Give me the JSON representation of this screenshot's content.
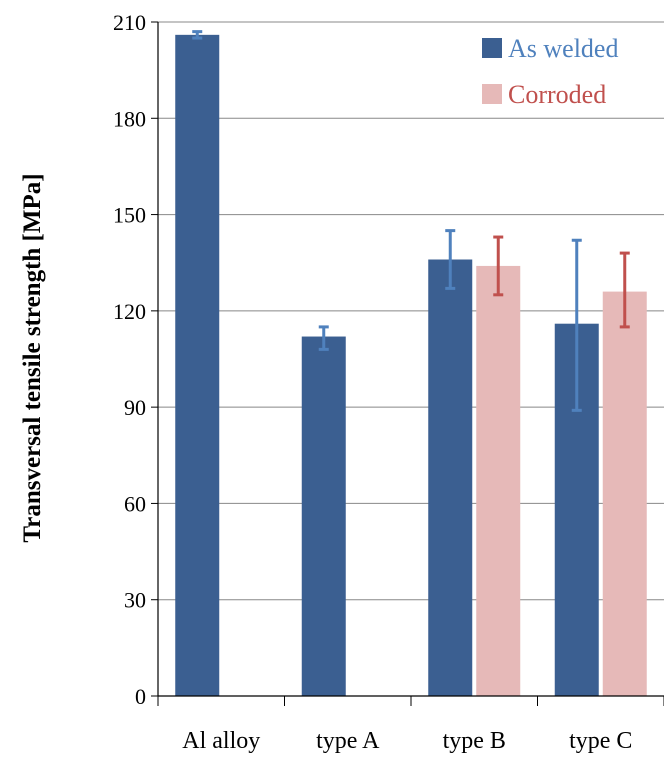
{
  "colors": {
    "as_welded": "#3b5f91",
    "as_welded_error": "#4f81bd",
    "corroded": "#e6b9b8",
    "corroded_error": "#c0504d",
    "as_welded_legend_text": "#4f81bd",
    "corroded_legend_text": "#c0504d",
    "grid": "#888888",
    "axis": "#000000"
  },
  "chart_data": {
    "type": "bar",
    "categories": [
      "Al alloy",
      "type A",
      "type B",
      "type C"
    ],
    "ylabel": "Transversal tensile strength [MPa]",
    "ylim": [
      0,
      210
    ],
    "yticks": [
      0,
      30,
      60,
      90,
      120,
      150,
      180,
      210
    ],
    "grid": true,
    "legend_position": "top-right",
    "series": [
      {
        "name": "As welded",
        "values": [
          206,
          112,
          136,
          116
        ],
        "error_low": [
          205,
          108,
          127,
          89
        ],
        "error_high": [
          207,
          115,
          145,
          142
        ]
      },
      {
        "name": "Corroded",
        "values": [
          null,
          null,
          134,
          126
        ],
        "error_low": [
          null,
          null,
          125,
          115
        ],
        "error_high": [
          null,
          null,
          143,
          138
        ]
      }
    ]
  }
}
